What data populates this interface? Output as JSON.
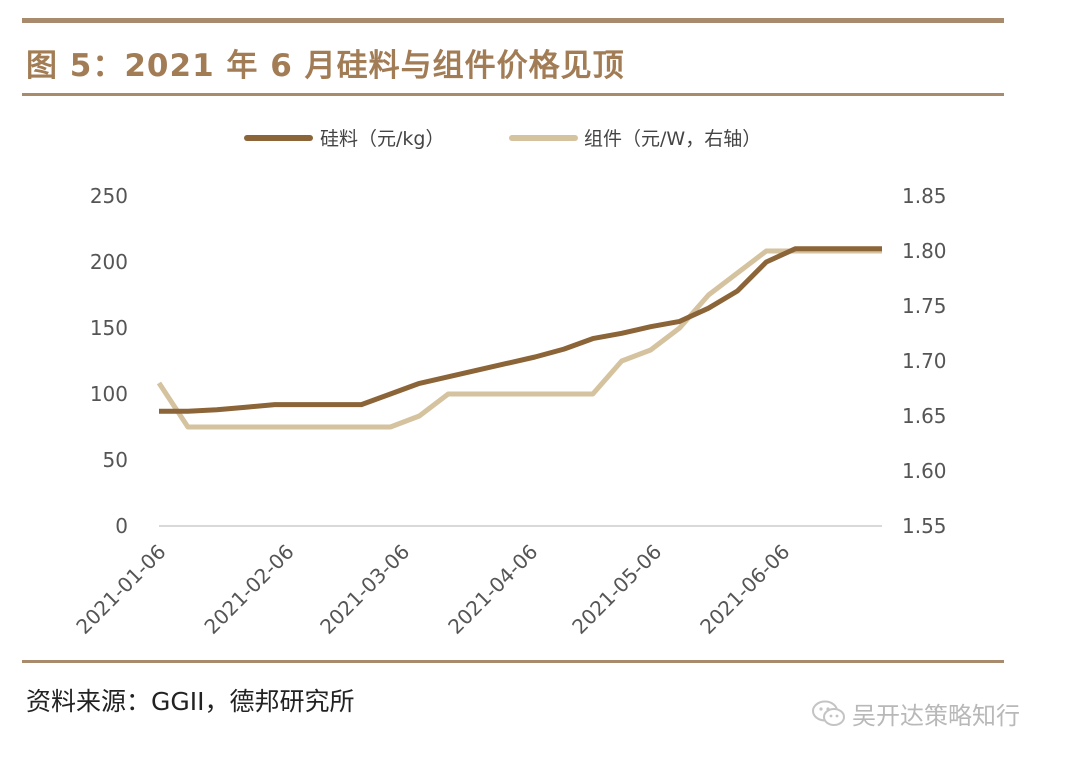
{
  "title": "图 5：2021 年 6 月硅料与组件价格见顶",
  "source": "资料来源：GGII，德邦研究所",
  "watermark": {
    "icon": "wechat-icon",
    "text": "吴开达策略知行"
  },
  "colors": {
    "accent": "#a88a6c",
    "title": "#a27c55",
    "series1": "#8b6438",
    "series2": "#d5c29f"
  },
  "chart_data": {
    "type": "line",
    "title": "图 5：2021 年 6 月硅料与组件价格见顶",
    "legend_position": "top",
    "grid": false,
    "x_tick_labels": [
      "2021-01-06",
      "2021-02-06",
      "2021-03-06",
      "2021-04-06",
      "2021-05-06",
      "2021-06-06"
    ],
    "x": [
      "2021-01-06",
      "2021-01-13",
      "2021-01-20",
      "2021-01-27",
      "2021-02-03",
      "2021-02-10",
      "2021-02-17",
      "2021-02-24",
      "2021-03-03",
      "2021-03-10",
      "2021-03-17",
      "2021-03-24",
      "2021-03-31",
      "2021-04-07",
      "2021-04-14",
      "2021-04-21",
      "2021-04-28",
      "2021-05-05",
      "2021-05-12",
      "2021-05-19",
      "2021-05-26",
      "2021-06-02",
      "2021-06-09",
      "2021-06-16",
      "2021-06-23",
      "2021-06-30"
    ],
    "y_left": {
      "ylim": [
        0,
        250
      ],
      "ticks": [
        0,
        50,
        100,
        150,
        200,
        250
      ]
    },
    "y_right": {
      "ylim": [
        1.55,
        1.85
      ],
      "ticks": [
        "1.55",
        "1.60",
        "1.65",
        "1.70",
        "1.75",
        "1.80",
        "1.85"
      ]
    },
    "series": [
      {
        "name": "硅料（元/kg）",
        "axis": "left",
        "values": [
          87,
          87,
          88,
          90,
          92,
          92,
          92,
          92,
          100,
          108,
          113,
          118,
          123,
          128,
          134,
          142,
          146,
          151,
          155,
          165,
          178,
          200,
          210,
          210,
          210,
          210
        ]
      },
      {
        "name": "组件（元/W，右轴）",
        "axis": "right",
        "values": [
          1.68,
          1.64,
          1.64,
          1.64,
          1.64,
          1.64,
          1.64,
          1.64,
          1.64,
          1.65,
          1.67,
          1.67,
          1.67,
          1.67,
          1.67,
          1.67,
          1.7,
          1.71,
          1.73,
          1.76,
          1.78,
          1.8,
          1.8,
          1.8,
          1.8,
          1.8
        ]
      }
    ]
  }
}
